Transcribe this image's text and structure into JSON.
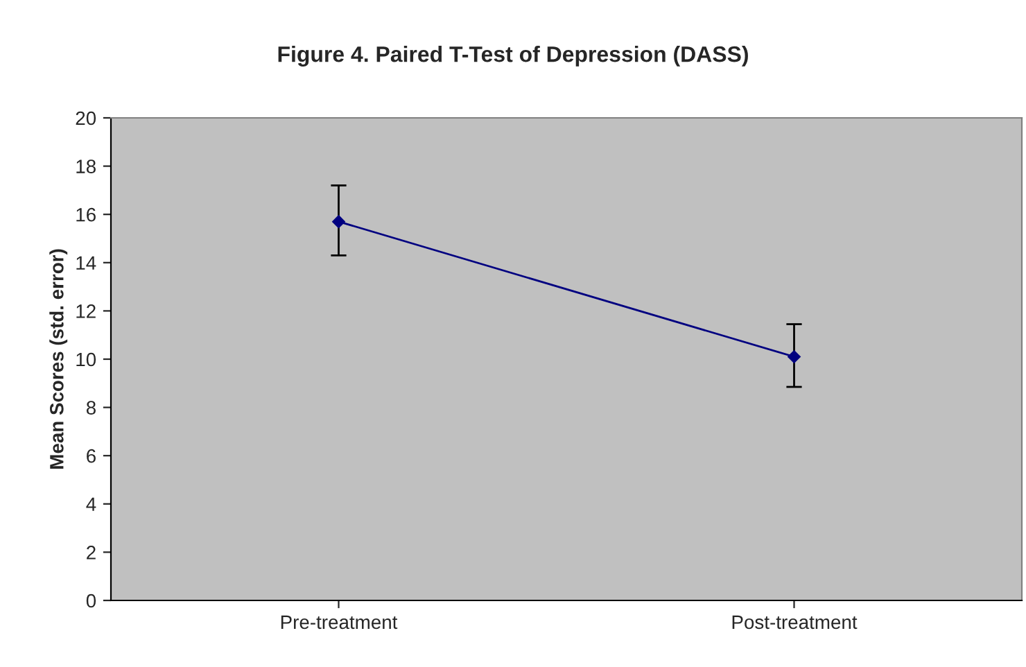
{
  "chart_data": {
    "type": "line",
    "title": "Figure 4. Paired T-Test of Depression (DASS)",
    "ylabel": "Mean Scores (std. error)",
    "categories": [
      "Pre-treatment",
      "Post-treatment"
    ],
    "series": [
      {
        "color": "#000080",
        "values": [
          15.7,
          10.1
        ],
        "errors": [
          [
            14.3,
            17.2
          ],
          [
            8.85,
            11.45
          ]
        ]
      }
    ],
    "ylim": [
      0,
      20
    ],
    "yticks": [
      0,
      2,
      4,
      6,
      8,
      10,
      12,
      14,
      16,
      18,
      20
    ],
    "grid": false,
    "legend": false,
    "marker": "diamond",
    "line_style": "solid"
  }
}
